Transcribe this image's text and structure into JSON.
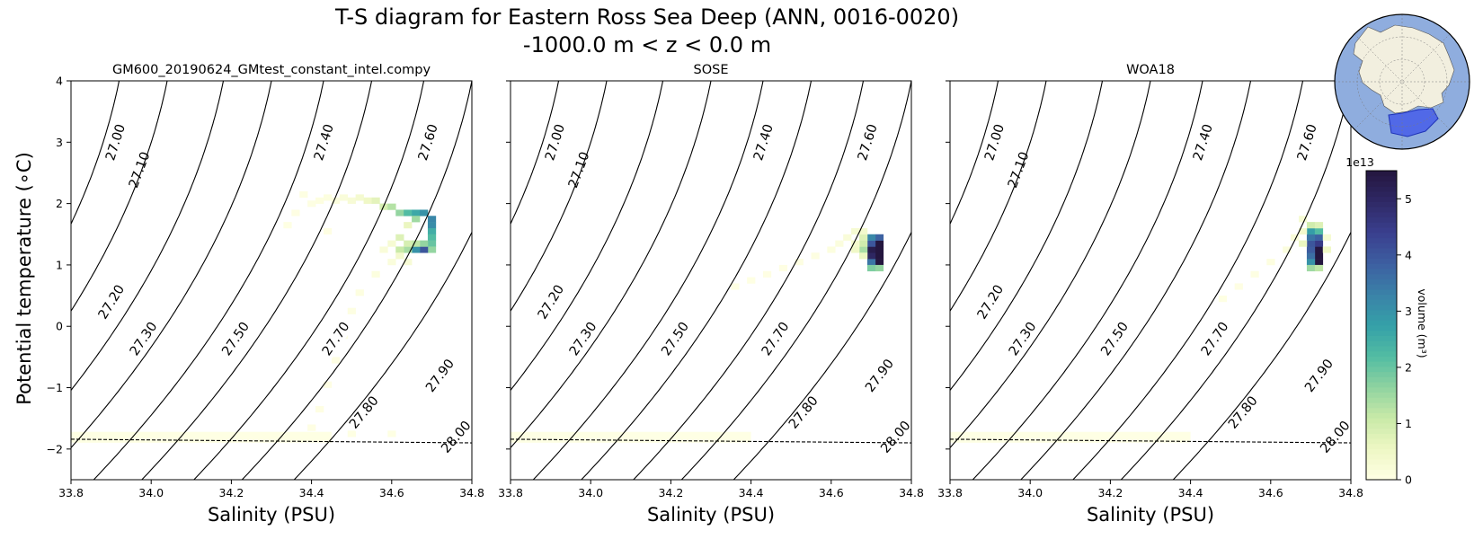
{
  "chart_data": {
    "type": "heatmap",
    "title_line1": "T-S diagram for Eastern Ross Sea Deep (ANN, 0016-0020)",
    "title_line2": "-1000.0 m < z < 0.0 m",
    "xlabel": "Salinity (PSU)",
    "ylabel": "Potential temperature (∘C)",
    "xlim": [
      33.8,
      34.8
    ],
    "ylim": [
      -2.5,
      4
    ],
    "x_ticks": [
      "33.8",
      "34.0",
      "34.2",
      "34.4",
      "34.6",
      "34.8"
    ],
    "y_ticks": [
      "−2",
      "−1",
      "0",
      "1",
      "2",
      "3",
      "4"
    ],
    "colorbar": {
      "label": "volume (m³)",
      "scale": "1e13",
      "ticks": [
        "0",
        "1",
        "2",
        "3",
        "4",
        "5"
      ],
      "range": [
        0,
        5.5
      ],
      "colors": [
        "#ffffe5",
        "#eef7c4",
        "#c9eaa8",
        "#8fd3a0",
        "#52bca3",
        "#35a0a8",
        "#3a82a8",
        "#3d5fa1",
        "#3a3f8e",
        "#2f2966",
        "#24163f"
      ]
    },
    "freezing_line": [
      [
        33.8,
        -1.84
      ],
      [
        34.8,
        -1.9
      ]
    ],
    "density_contours": [
      {
        "sigma": 27.0,
        "label": "27.00",
        "s0": 33.65,
        "label_at": [
          33.91,
          3.0
        ]
      },
      {
        "sigma": 27.1,
        "label": "27.10",
        "s0": 33.78,
        "label_at": [
          33.97,
          2.55
        ]
      },
      {
        "sigma": 27.2,
        "label": "27.20",
        "s0": 33.92,
        "label_at": [
          33.9,
          0.4
        ]
      },
      {
        "sigma": 27.3,
        "label": "27.30",
        "s0": 34.04,
        "label_at": [
          33.98,
          -0.2
        ]
      },
      {
        "sigma": 27.4,
        "label": "27.40",
        "s0": 34.18,
        "label_at": [
          34.43,
          3.0
        ]
      },
      {
        "sigma": 27.5,
        "label": "27.50",
        "s0": 34.3,
        "label_at": [
          34.21,
          -0.2
        ]
      },
      {
        "sigma": 27.6,
        "label": "27.60",
        "s0": 34.43,
        "label_at": [
          34.69,
          3.0
        ]
      },
      {
        "sigma": 27.7,
        "label": "27.70",
        "s0": 34.55,
        "label_at": [
          34.46,
          -0.2
        ]
      },
      {
        "sigma": 27.8,
        "label": "27.80",
        "s0": 34.68,
        "label_at": [
          34.53,
          -1.4
        ]
      },
      {
        "sigma": 27.9,
        "label": "27.90",
        "s0": 34.8,
        "label_at": [
          34.72,
          -0.8
        ]
      },
      {
        "sigma": 28.0,
        "label": "28.00",
        "s0": 34.93,
        "label_at": [
          34.76,
          -1.8
        ]
      }
    ],
    "panels": [
      {
        "title": "GM600_20190624_GMtest_constant_intel.compy",
        "cells": [
          [
            34.38,
            2.15,
            0.05
          ],
          [
            34.4,
            2.0,
            0.05
          ],
          [
            34.42,
            2.05,
            0.08
          ],
          [
            34.44,
            2.1,
            0.1
          ],
          [
            34.46,
            2.05,
            0.12
          ],
          [
            34.48,
            2.1,
            0.18
          ],
          [
            34.5,
            2.05,
            0.25
          ],
          [
            34.52,
            2.1,
            0.35
          ],
          [
            34.54,
            2.05,
            0.5
          ],
          [
            34.56,
            2.05,
            0.7
          ],
          [
            34.58,
            1.95,
            0.9
          ],
          [
            34.6,
            1.95,
            1.3
          ],
          [
            34.62,
            1.85,
            1.6
          ],
          [
            34.64,
            1.85,
            2.2
          ],
          [
            34.66,
            1.85,
            2.6
          ],
          [
            34.68,
            1.85,
            3.0
          ],
          [
            34.7,
            1.75,
            3.2
          ],
          [
            34.7,
            1.65,
            3.1
          ],
          [
            34.7,
            1.55,
            2.5
          ],
          [
            34.7,
            1.45,
            2.2
          ],
          [
            34.7,
            1.35,
            2.0
          ],
          [
            34.7,
            1.25,
            1.6
          ],
          [
            34.68,
            1.25,
            4.0
          ],
          [
            34.68,
            1.35,
            1.6
          ],
          [
            34.66,
            1.25,
            3.0
          ],
          [
            34.66,
            1.35,
            1.2
          ],
          [
            34.64,
            1.25,
            1.4
          ],
          [
            34.64,
            1.35,
            0.9
          ],
          [
            34.62,
            1.25,
            1.1
          ],
          [
            34.62,
            1.45,
            0.8
          ],
          [
            34.64,
            1.65,
            0.6
          ],
          [
            34.66,
            1.75,
            1.5
          ],
          [
            34.62,
            1.15,
            0.4
          ],
          [
            34.6,
            1.35,
            0.3
          ],
          [
            34.58,
            1.25,
            0.2
          ],
          [
            34.64,
            1.05,
            0.25
          ],
          [
            34.6,
            1.05,
            0.15
          ],
          [
            34.56,
            0.85,
            0.1
          ],
          [
            34.52,
            0.55,
            0.08
          ],
          [
            34.5,
            0.25,
            0.05
          ],
          [
            34.48,
            -0.15,
            0.05
          ],
          [
            34.46,
            -0.55,
            0.04
          ],
          [
            34.44,
            -0.95,
            0.04
          ],
          [
            34.42,
            -1.35,
            0.04
          ],
          [
            34.4,
            -1.65,
            0.04
          ],
          [
            34.5,
            -1.75,
            0.03
          ],
          [
            34.6,
            -1.75,
            0.03
          ],
          [
            34.36,
            1.85,
            0.04
          ],
          [
            34.34,
            1.65,
            0.03
          ],
          [
            34.44,
            1.55,
            0.04
          ]
        ],
        "band": [
          [
            33.8,
            34.45,
            -1.72,
            -1.78,
            0.03
          ]
        ]
      },
      {
        "title": "SOSE",
        "cells": [
          [
            34.72,
            1.05,
            5.5
          ],
          [
            34.72,
            1.15,
            5.5
          ],
          [
            34.72,
            1.25,
            5.5
          ],
          [
            34.72,
            1.35,
            5.5
          ],
          [
            34.72,
            1.45,
            3.8
          ],
          [
            34.7,
            1.05,
            3.5
          ],
          [
            34.7,
            1.15,
            5.0
          ],
          [
            34.7,
            1.25,
            5.3
          ],
          [
            34.7,
            1.35,
            4.0
          ],
          [
            34.7,
            1.45,
            3.2
          ],
          [
            34.7,
            0.95,
            1.8
          ],
          [
            34.72,
            0.95,
            1.6
          ],
          [
            34.68,
            1.25,
            1.4
          ],
          [
            34.68,
            1.35,
            1.0
          ],
          [
            34.68,
            1.45,
            0.8
          ],
          [
            34.68,
            1.15,
            0.6
          ],
          [
            34.66,
            1.25,
            0.5
          ],
          [
            34.66,
            1.35,
            0.4
          ],
          [
            34.66,
            1.55,
            0.3
          ],
          [
            34.68,
            1.55,
            0.4
          ],
          [
            34.64,
            1.45,
            0.2
          ],
          [
            34.62,
            1.35,
            0.12
          ],
          [
            34.6,
            1.25,
            0.1
          ],
          [
            34.56,
            1.15,
            0.07
          ],
          [
            34.52,
            1.05,
            0.05
          ],
          [
            34.48,
            0.95,
            0.04
          ],
          [
            34.44,
            0.85,
            0.04
          ],
          [
            34.4,
            0.75,
            0.03
          ],
          [
            34.36,
            0.65,
            0.03
          ]
        ],
        "band": [
          [
            33.8,
            34.4,
            -1.72,
            -1.78,
            0.02
          ]
        ]
      },
      {
        "title": "WOA18",
        "cells": [
          [
            34.72,
            1.05,
            5.5
          ],
          [
            34.72,
            1.15,
            5.5
          ],
          [
            34.72,
            1.25,
            5.5
          ],
          [
            34.72,
            1.35,
            4.5
          ],
          [
            34.72,
            1.45,
            3.8
          ],
          [
            34.7,
            1.05,
            3.0
          ],
          [
            34.7,
            1.15,
            3.6
          ],
          [
            34.7,
            1.25,
            3.9
          ],
          [
            34.7,
            1.35,
            4.0
          ],
          [
            34.7,
            1.45,
            3.5
          ],
          [
            34.7,
            1.55,
            2.8
          ],
          [
            34.72,
            1.55,
            2.2
          ],
          [
            34.7,
            0.95,
            1.5
          ],
          [
            34.72,
            0.95,
            1.2
          ],
          [
            34.7,
            1.65,
            1.0
          ],
          [
            34.72,
            1.65,
            0.8
          ],
          [
            34.68,
            1.35,
            0.6
          ],
          [
            34.68,
            1.55,
            0.4
          ],
          [
            34.68,
            1.75,
            0.3
          ],
          [
            34.74,
            1.25,
            0.5
          ],
          [
            34.74,
            1.45,
            0.3
          ],
          [
            34.66,
            1.45,
            0.2
          ],
          [
            34.64,
            1.25,
            0.12
          ],
          [
            34.6,
            1.05,
            0.08
          ],
          [
            34.56,
            0.85,
            0.05
          ],
          [
            34.52,
            0.65,
            0.04
          ],
          [
            34.48,
            0.45,
            0.03
          ]
        ],
        "band": [
          [
            33.8,
            34.4,
            -1.72,
            -1.78,
            0.02
          ]
        ]
      }
    ]
  },
  "inset_map": {
    "description_name": "antarctica-region-map",
    "ocean_color": "#8fadde",
    "land_color": "#f2efdf",
    "region_color": "#4a62e8"
  }
}
